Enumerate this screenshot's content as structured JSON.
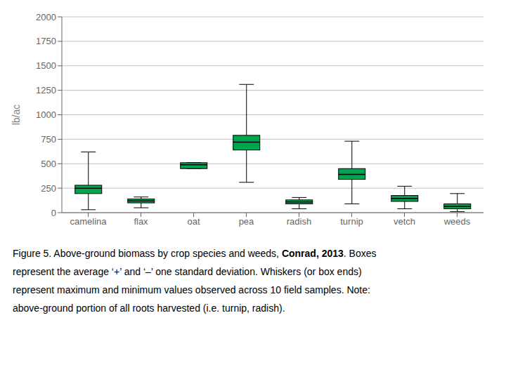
{
  "chart_data": {
    "type": "box",
    "categories": [
      "camelina",
      "flax",
      "oat",
      "pea",
      "radish",
      "turnip",
      "vetch",
      "weeds"
    ],
    "mean": [
      250,
      120,
      490,
      720,
      110,
      390,
      145,
      65
    ],
    "q1": [
      195,
      100,
      450,
      640,
      90,
      340,
      115,
      40
    ],
    "q3": [
      280,
      140,
      510,
      790,
      130,
      450,
      175,
      90
    ],
    "whisker_min": [
      30,
      50,
      450,
      310,
      40,
      90,
      40,
      10
    ],
    "whisker_max": [
      620,
      160,
      510,
      1310,
      155,
      730,
      270,
      195
    ],
    "color": "#00a550",
    "ylabel": "lb/ac",
    "ylim": [
      0,
      2000
    ],
    "yticks": [
      0,
      250,
      500,
      750,
      1000,
      1250,
      1500,
      1750,
      2000
    ],
    "grid": true,
    "annotations": [
      [
        "Figure 5. Above-ground biomass by crop species and weeds, ",
        {
          "text": "Conrad, 2013",
          "bold": true
        },
        ". Boxes"
      ],
      [
        "represent the average ‘+’ and ‘–’ one standard deviation. Whiskers (or box ends)"
      ],
      [
        "represent maximum and minimum values observed across 10 field samples. Note:"
      ],
      [
        "above-ground portion of all roots harvested (i.e. turnip, radish)."
      ]
    ]
  }
}
